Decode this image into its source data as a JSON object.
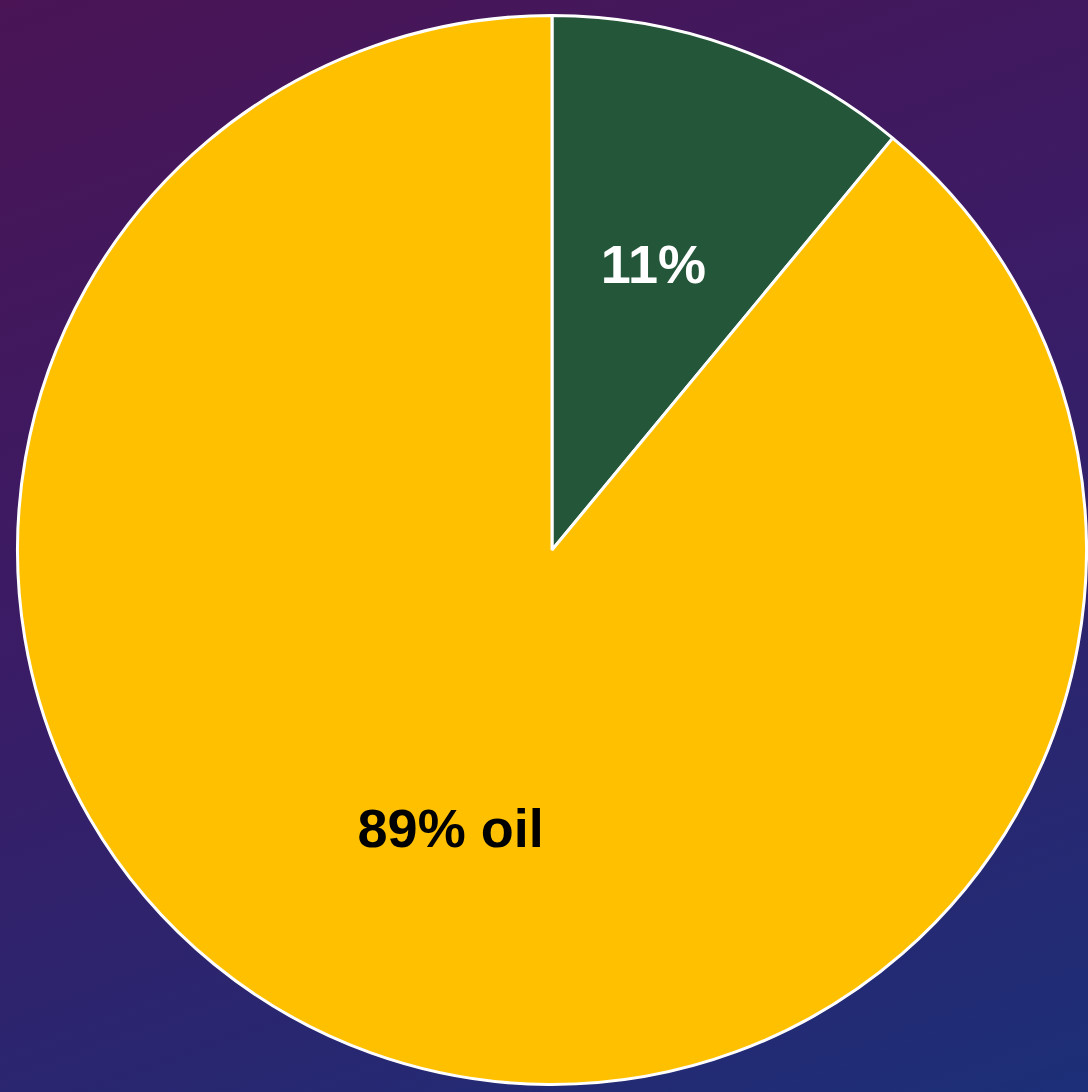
{
  "chart_data": {
    "type": "pie",
    "categories": [
      null,
      "oil"
    ],
    "values": [
      11,
      89
    ],
    "colors": [
      "#245639",
      "#ffc000"
    ],
    "value_labels": [
      "11%",
      "89%"
    ],
    "legend": false
  }
}
